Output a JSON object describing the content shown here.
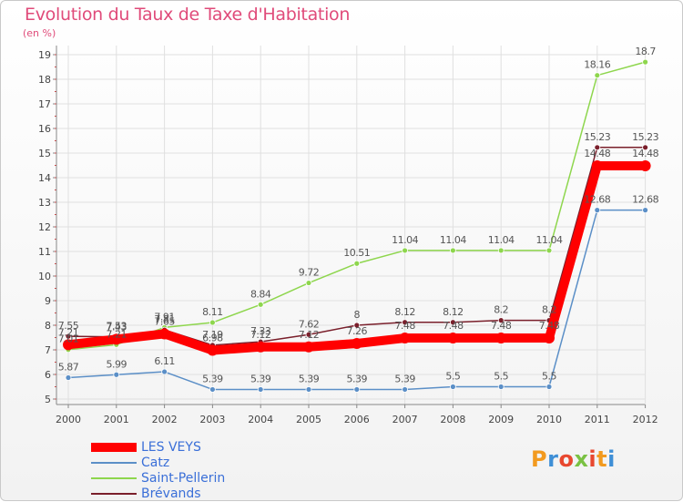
{
  "title": "Evolution du Taux de Taxe d'Habitation",
  "subtitle": "(en %)",
  "logo": "Proxiti",
  "chart_data": {
    "type": "line",
    "title": "Evolution du Taux de Taxe d'Habitation",
    "subtitle": "(en %)",
    "categories": [
      "2000",
      "2001",
      "2002",
      "2003",
      "2004",
      "2005",
      "2006",
      "2007",
      "2008",
      "2009",
      "2010",
      "2011",
      "2012"
    ],
    "ylim": [
      5,
      19
    ],
    "yticks": [
      "5",
      "6",
      "7",
      "8",
      "9",
      "10",
      "11",
      "12",
      "13",
      "14",
      "15",
      "16",
      "17",
      "18",
      "19"
    ],
    "grid": true,
    "legend_position": "bottom-left",
    "series": [
      {
        "name": "LES VEYS",
        "color": "#ff0000",
        "values": [
          7.21,
          7.43,
          7.65,
          6.98,
          7.12,
          7.12,
          7.26,
          7.48,
          7.48,
          7.48,
          7.48,
          14.48,
          14.48
        ],
        "labels": [
          "7.21",
          "7.43",
          "7.65",
          "6.98",
          "7.12",
          "7.12",
          "7.26",
          "7.48",
          "7.48",
          "7.48",
          "7.48",
          "14.48",
          "14.48"
        ]
      },
      {
        "name": "Catz",
        "color": "#5b8fc7",
        "values": [
          5.87,
          5.99,
          6.11,
          5.39,
          5.39,
          5.39,
          5.39,
          5.39,
          5.5,
          5.5,
          5.5,
          12.68,
          12.68
        ],
        "labels": [
          "5.87",
          "5.99",
          "6.11",
          "5.39",
          "5.39",
          "5.39",
          "5.39",
          "5.39",
          "5.5",
          "5.5",
          "5.5",
          "12.68",
          "12.68"
        ]
      },
      {
        "name": "Saint-Pellerin",
        "color": "#8ed64d",
        "values": [
          7.01,
          7.21,
          7.91,
          8.11,
          8.84,
          9.72,
          10.51,
          11.04,
          11.04,
          11.04,
          11.04,
          18.16,
          18.7
        ],
        "labels": [
          "7.01",
          "7.21",
          "7.91",
          "8.11",
          "8.84",
          "9.72",
          "10.51",
          "11.04",
          "11.04",
          "11.04",
          "11.04",
          "18.16",
          "18.7"
        ]
      },
      {
        "name": "Brévands",
        "color": "#7a1f2b",
        "values": [
          7.55,
          7.53,
          7.81,
          7.19,
          7.33,
          7.62,
          8,
          8.12,
          8.12,
          8.2,
          8.2,
          15.23,
          15.23
        ],
        "labels": [
          "7.55",
          "7.53",
          "7.81",
          "7.19",
          "7.33",
          "7.62",
          "8",
          "8.12",
          "8.12",
          "8.2",
          "8.2",
          "15.23",
          "15.23"
        ]
      }
    ]
  },
  "colors": {
    "title": "#e04b7a",
    "legend_text": "#3a6fd8",
    "label_text": "#555555",
    "grid": "#e0e0e0"
  }
}
